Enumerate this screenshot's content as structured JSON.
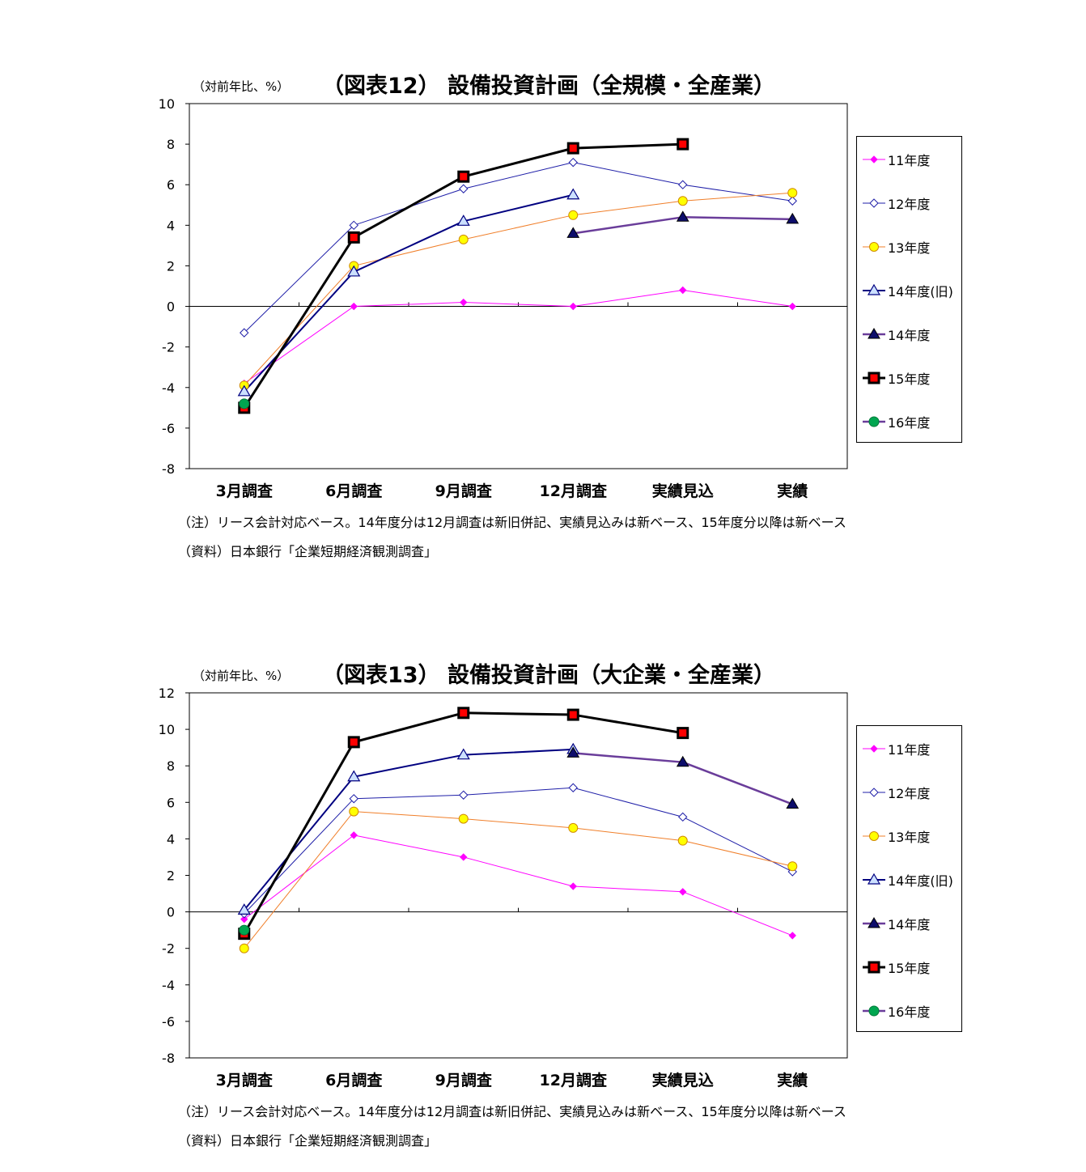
{
  "charts": [
    {
      "unit_label": "（対前年比、%）",
      "title": "（図表12） 設備投資計画（全規模・全産業）",
      "note": "（注）リース会計対応ベース。14年度分は12月調査は新旧併記、実績見込みは新ベース、15年度分以降は新ベース",
      "source": "（資料）日本銀行「企業短期経済観測調査」"
    },
    {
      "unit_label": "（対前年比、%）",
      "title": "（図表13） 設備投資計画（大企業・全産業）",
      "note": "（注）リース会計対応ベース。14年度分は12月調査は新旧併記、実績見込みは新ベース、15年度分以降は新ベース",
      "source": "（資料）日本銀行「企業短期経済観測調査」"
    }
  ],
  "styles": {
    "11年度": {
      "color": "#ff00ff",
      "fill": "#ff00ff",
      "marker": "diamond-filled",
      "line_width": 1
    },
    "12年度": {
      "color": "#1f1fa8",
      "fill": "#ffffff",
      "marker": "diamond-open",
      "line_width": 1
    },
    "13年度": {
      "color": "#f07f2a",
      "fill": "#ffff00",
      "marker": "circle",
      "line_width": 1
    },
    "14年度(旧)": {
      "color": "#000080",
      "fill": "#cce0ff",
      "marker": "triangle-open",
      "line_width": 2
    },
    "14年度": {
      "color": "#6a3d9a",
      "fill": "#0d0d6b",
      "marker": "triangle-filled",
      "line_width": 2.5
    },
    "15年度": {
      "color": "#000000",
      "fill": "#ff0000",
      "marker": "square",
      "line_width": 3
    },
    "16年度": {
      "color": "#6a3d9a",
      "fill": "#00a650",
      "marker": "circle-green",
      "line_width": 2.5
    }
  },
  "chart_data": [
    {
      "type": "line",
      "categories": [
        "3月調査",
        "6月調査",
        "9月調査",
        "12月調査",
        "実績見込",
        "実績"
      ],
      "ylim": [
        -8,
        10
      ],
      "yticks": [
        -8,
        -6,
        -4,
        -2,
        0,
        2,
        4,
        6,
        8,
        10
      ],
      "grid": false,
      "legend": "right",
      "series": [
        {
          "name": "11年度",
          "values": [
            -3.8,
            0.0,
            0.2,
            0.0,
            0.8,
            0.0
          ]
        },
        {
          "name": "12年度",
          "values": [
            -1.3,
            4.0,
            5.8,
            7.1,
            6.0,
            5.2
          ]
        },
        {
          "name": "13年度",
          "values": [
            -3.9,
            2.0,
            3.3,
            4.5,
            5.2,
            5.6
          ]
        },
        {
          "name": "14年度(旧)",
          "values": [
            -4.2,
            1.7,
            4.2,
            5.5,
            null,
            null
          ]
        },
        {
          "name": "14年度",
          "values": [
            null,
            null,
            null,
            3.6,
            4.4,
            4.3
          ]
        },
        {
          "name": "15年度",
          "values": [
            -5.0,
            3.4,
            6.4,
            7.8,
            8.0,
            null
          ]
        },
        {
          "name": "16年度",
          "values": [
            -4.8,
            null,
            null,
            null,
            null,
            null
          ]
        }
      ]
    },
    {
      "type": "line",
      "categories": [
        "3月調査",
        "6月調査",
        "9月調査",
        "12月調査",
        "実績見込",
        "実績"
      ],
      "ylim": [
        -8,
        12
      ],
      "yticks": [
        -8,
        -6,
        -4,
        -2,
        0,
        2,
        4,
        6,
        8,
        10,
        12
      ],
      "grid": false,
      "legend": "right",
      "series": [
        {
          "name": "11年度",
          "values": [
            -0.4,
            4.2,
            3.0,
            1.4,
            1.1,
            -1.3
          ]
        },
        {
          "name": "12年度",
          "values": [
            -0.1,
            6.2,
            6.4,
            6.8,
            5.2,
            2.2
          ]
        },
        {
          "name": "13年度",
          "values": [
            -2.0,
            5.5,
            5.1,
            4.6,
            3.9,
            2.5
          ]
        },
        {
          "name": "14年度(旧)",
          "values": [
            0.1,
            7.4,
            8.6,
            8.9,
            null,
            null
          ]
        },
        {
          "name": "14年度",
          "values": [
            null,
            null,
            null,
            8.7,
            8.2,
            5.9
          ]
        },
        {
          "name": "15年度",
          "values": [
            -1.2,
            9.3,
            10.9,
            10.8,
            9.8,
            null
          ]
        },
        {
          "name": "16年度",
          "values": [
            -1.0,
            null,
            null,
            null,
            null,
            null
          ]
        }
      ]
    }
  ]
}
